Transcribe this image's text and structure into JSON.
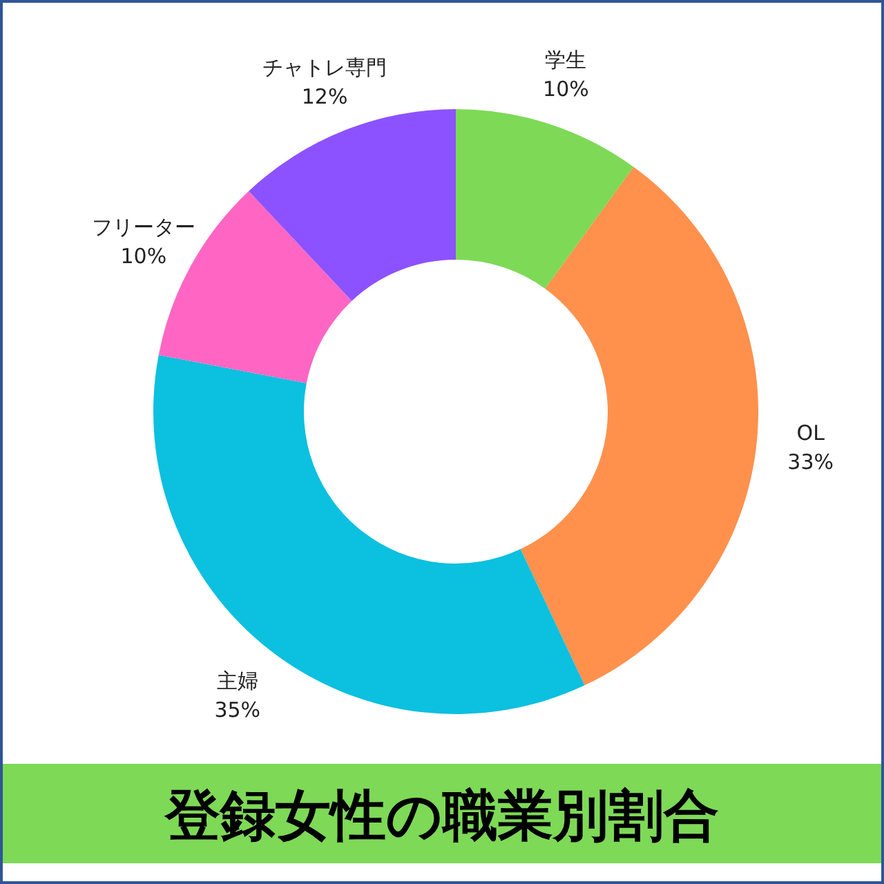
{
  "chart_data": {
    "type": "donut",
    "title": "登録女性の職業別割合",
    "categories": [
      "学生",
      "OL",
      "主婦",
      "フリーター",
      "チャトレ専門"
    ],
    "values": [
      10,
      33,
      35,
      10,
      12
    ],
    "value_labels": [
      "10%",
      "33%",
      "35%",
      "10%",
      "12%"
    ],
    "colors": [
      "#7ed957",
      "#ff914d",
      "#0cc0df",
      "#ff66c4",
      "#8c52ff"
    ]
  }
}
